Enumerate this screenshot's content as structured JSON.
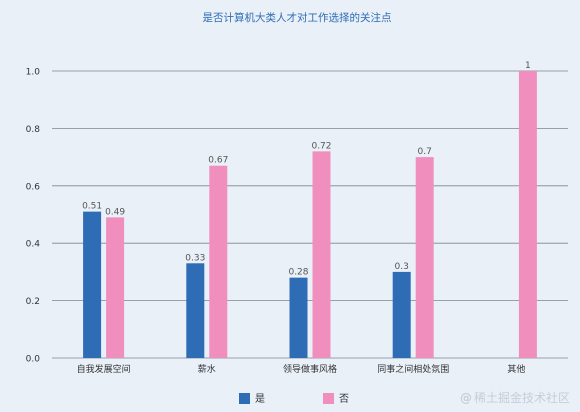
{
  "chart_data": {
    "type": "bar",
    "title": "是否计算机大类人才对工作选择的关注点",
    "categories": [
      "自我发展空间",
      "薪水",
      "领导做事风格",
      "同事之间相处氛围",
      "其他"
    ],
    "series": [
      {
        "name": "是",
        "color": "#2e6cb5",
        "values": [
          0.51,
          0.33,
          0.28,
          0.3,
          null
        ],
        "labels": [
          "0.51",
          "0.33",
          "0.28",
          "0.3",
          ""
        ]
      },
      {
        "name": "否",
        "color": "#f08fbd",
        "values": [
          0.49,
          0.67,
          0.72,
          0.7,
          1
        ],
        "labels": [
          "0.49",
          "0.67",
          "0.72",
          "0.7",
          "1"
        ]
      }
    ],
    "ylim": [
      0,
      1.0
    ],
    "yticks": [
      "0.0",
      "0.2",
      "0.4",
      "0.6",
      "0.8",
      "1.0"
    ],
    "grid": true,
    "legend_position": "bottom"
  },
  "watermark": "稀土掘金技术社区",
  "colors": {
    "background": "#e9f0f8",
    "grid": "#7e8590",
    "title": "#2e6cb5",
    "text": "#333333"
  }
}
